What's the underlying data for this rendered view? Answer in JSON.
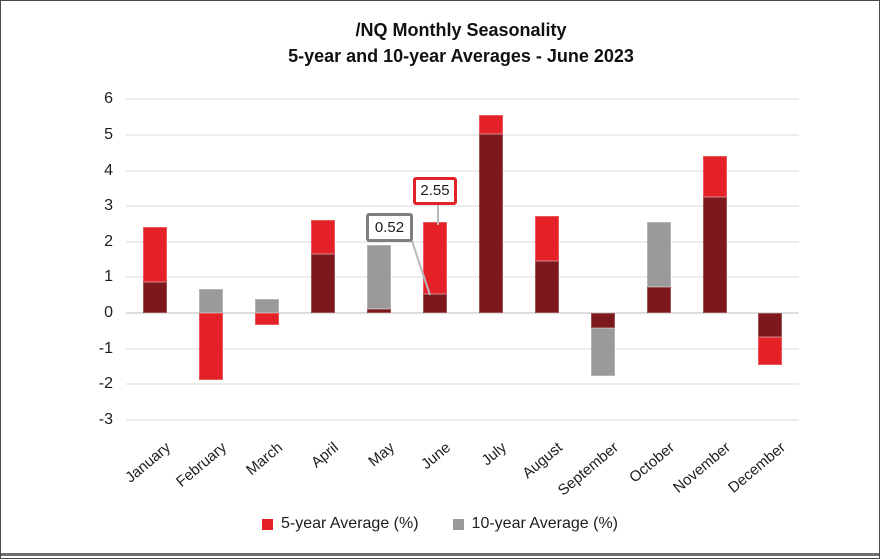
{
  "title": {
    "line1": "/NQ Monthly Seasonality",
    "line2": "5-year and 10-year Averages - June 2023"
  },
  "legend": [
    {
      "label": "5-year Average (%)",
      "color": "#e32127"
    },
    {
      "label": "10-year Average (%)",
      "color": "#9a9a9a"
    }
  ],
  "annotations": [
    {
      "text": "0.52",
      "month": "June",
      "series": "10-year Average (%)",
      "border_color": "#7f7f7f"
    },
    {
      "text": "2.55",
      "month": "June",
      "series": "5-year Average (%)",
      "border_color": "#e32128"
    }
  ],
  "chart_data": {
    "type": "bar",
    "title": "/NQ Monthly Seasonality 5-year and 10-year Averages - June 2023",
    "categories": [
      "January",
      "February",
      "March",
      "April",
      "May",
      "June",
      "July",
      "August",
      "September",
      "October",
      "November",
      "December"
    ],
    "series": [
      {
        "name": "5-year Average (%)",
        "color": "#e32127",
        "values": [
          2.42,
          -1.87,
          -0.34,
          2.62,
          0.1,
          2.55,
          5.55,
          2.73,
          -0.42,
          0.72,
          4.4,
          -1.45
        ]
      },
      {
        "name": "10-year Average (%)",
        "color": "#9a9a9a",
        "values": [
          0.88,
          0.66,
          0.38,
          1.66,
          1.9,
          0.52,
          5.03,
          1.45,
          -1.78,
          2.55,
          3.25,
          -0.68
        ]
      }
    ],
    "overlap_color": "#7d191c",
    "xlabel": "",
    "ylabel": "",
    "ylim": [
      -3,
      6
    ],
    "yticks": [
      6,
      5,
      4,
      3,
      2,
      1,
      0,
      -1,
      -2,
      -3
    ],
    "grid": true,
    "legend_position": "bottom"
  }
}
